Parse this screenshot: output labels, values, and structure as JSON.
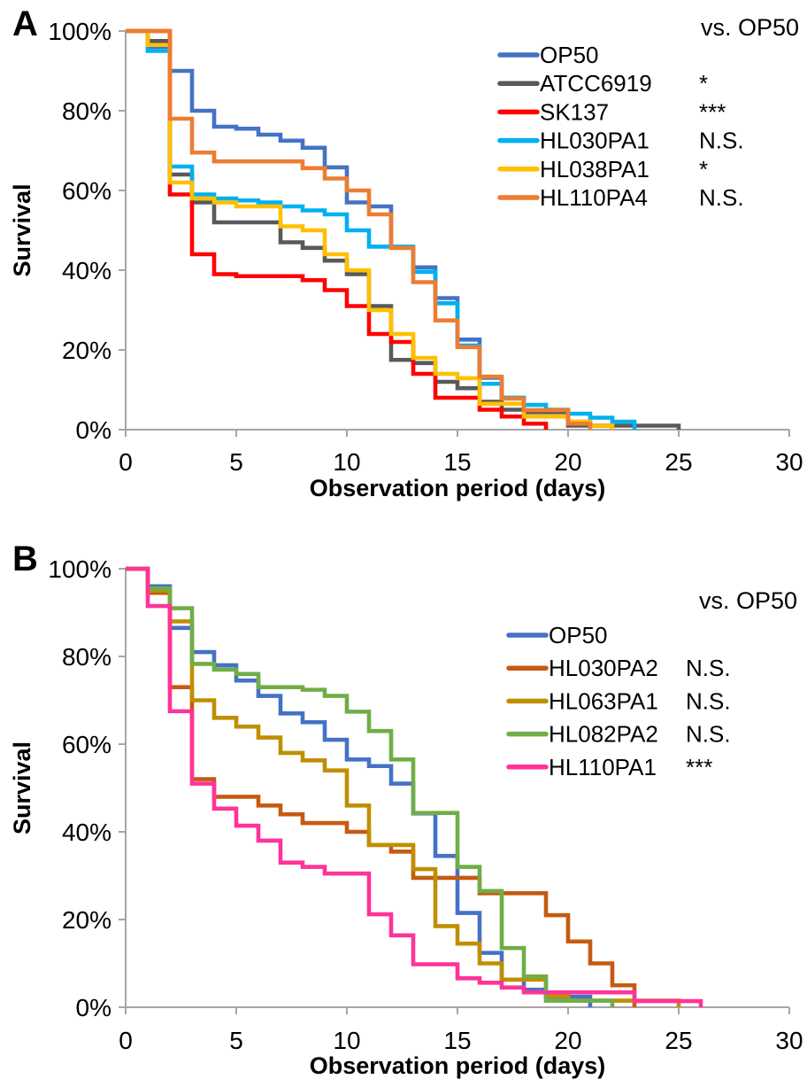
{
  "figure": {
    "background": "#ffffff",
    "axis_color": "#a6a6a6",
    "text_color": "#000000"
  },
  "chart_data": [
    {
      "type": "line",
      "subtype": "step-survival",
      "panel_label": "A",
      "title": "",
      "xlabel": "Observation period (days)",
      "ylabel": "Survival",
      "xlim": [
        0,
        30
      ],
      "ylim": [
        0,
        100
      ],
      "x_ticks": [
        0,
        5,
        10,
        15,
        20,
        25,
        30
      ],
      "y_ticks": [
        "0%",
        "20%",
        "40%",
        "60%",
        "80%",
        "100%"
      ],
      "grid": "off",
      "legend_position": "upper right",
      "legend_note": "vs. OP50",
      "series": [
        {
          "name": "OP50",
          "color": "#4472C4",
          "significance": "",
          "points": [
            [
              0,
              100
            ],
            [
              1,
              96
            ],
            [
              2,
              90
            ],
            [
              3,
              80
            ],
            [
              4,
              76
            ],
            [
              5,
              75.5
            ],
            [
              6,
              74
            ],
            [
              7,
              72.5
            ],
            [
              8,
              70.7
            ],
            [
              9,
              65.8
            ],
            [
              10,
              57
            ],
            [
              11,
              56
            ],
            [
              12,
              45.6
            ],
            [
              13,
              40.7
            ],
            [
              14,
              33
            ],
            [
              15,
              22.6
            ],
            [
              16,
              13
            ],
            [
              17,
              8
            ],
            [
              18,
              3.3
            ],
            [
              20,
              2
            ],
            [
              21,
              1
            ],
            [
              22,
              0
            ]
          ]
        },
        {
          "name": "ATCC6919",
          "color": "#595959",
          "significance": "*",
          "points": [
            [
              0,
              100
            ],
            [
              1,
              97.5
            ],
            [
              2,
              64
            ],
            [
              3,
              57
            ],
            [
              4,
              52
            ],
            [
              7,
              47
            ],
            [
              8,
              45.6
            ],
            [
              9,
              42.4
            ],
            [
              10,
              39
            ],
            [
              11,
              31
            ],
            [
              12,
              17.5
            ],
            [
              13,
              16.7
            ],
            [
              14,
              12
            ],
            [
              15,
              10.4
            ],
            [
              16,
              7
            ],
            [
              17,
              5
            ],
            [
              18,
              4.4
            ],
            [
              20,
              1
            ],
            [
              25,
              0
            ]
          ]
        },
        {
          "name": "SK137",
          "color": "#FF0000",
          "significance": "***",
          "points": [
            [
              0,
              100
            ],
            [
              2,
              59
            ],
            [
              3,
              44
            ],
            [
              4,
              39
            ],
            [
              5,
              38.5
            ],
            [
              8,
              37.5
            ],
            [
              9,
              35
            ],
            [
              10,
              31
            ],
            [
              11,
              24
            ],
            [
              12,
              22
            ],
            [
              13,
              14
            ],
            [
              14,
              8
            ],
            [
              16,
              5
            ],
            [
              17,
              3.3
            ],
            [
              18,
              1.5
            ],
            [
              19,
              0
            ]
          ]
        },
        {
          "name": "HL030PA1",
          "color": "#00B0F0",
          "significance": "N.S.",
          "points": [
            [
              0,
              100
            ],
            [
              1,
              95
            ],
            [
              2,
              66
            ],
            [
              3,
              59
            ],
            [
              4,
              58
            ],
            [
              5,
              57.5
            ],
            [
              6,
              57
            ],
            [
              7,
              56
            ],
            [
              8,
              55
            ],
            [
              9,
              54
            ],
            [
              10,
              50
            ],
            [
              11,
              45.9
            ],
            [
              13,
              39.6
            ],
            [
              14,
              31.7
            ],
            [
              15,
              21.1
            ],
            [
              16,
              11.5
            ],
            [
              17,
              8
            ],
            [
              18,
              6.2
            ],
            [
              19,
              5
            ],
            [
              20,
              4
            ],
            [
              21,
              3
            ],
            [
              22,
              2
            ],
            [
              23,
              0
            ]
          ]
        },
        {
          "name": "HL038PA1",
          "color": "#FFC000",
          "significance": "*",
          "points": [
            [
              0,
              100
            ],
            [
              1,
              96.5
            ],
            [
              2,
              62
            ],
            [
              3,
              58
            ],
            [
              4,
              57
            ],
            [
              5,
              56
            ],
            [
              7,
              51
            ],
            [
              8,
              50
            ],
            [
              9,
              44
            ],
            [
              10,
              40
            ],
            [
              11,
              30
            ],
            [
              12,
              24
            ],
            [
              13,
              18
            ],
            [
              14,
              14
            ],
            [
              15,
              12.9
            ],
            [
              16,
              6.5
            ],
            [
              18,
              3.3
            ],
            [
              20,
              2
            ],
            [
              21,
              1
            ],
            [
              22,
              0
            ]
          ]
        },
        {
          "name": "HL110PA4",
          "color": "#ED7D31",
          "significance": "N.S.",
          "points": [
            [
              0,
              100
            ],
            [
              2,
              78
            ],
            [
              3,
              69.5
            ],
            [
              4,
              67.3
            ],
            [
              8,
              65.6
            ],
            [
              9,
              63
            ],
            [
              10,
              60
            ],
            [
              11,
              54
            ],
            [
              12,
              45.6
            ],
            [
              13,
              37
            ],
            [
              14,
              27.4
            ],
            [
              15,
              20.7
            ],
            [
              16,
              13.3
            ],
            [
              17,
              7.8
            ],
            [
              18,
              4.9
            ],
            [
              20,
              1.5
            ],
            [
              21,
              0
            ]
          ]
        }
      ]
    },
    {
      "type": "line",
      "subtype": "step-survival",
      "panel_label": "B",
      "title": "",
      "xlabel": "Observation period (days)",
      "ylabel": "Survival",
      "xlim": [
        0,
        30
      ],
      "ylim": [
        0,
        100
      ],
      "x_ticks": [
        0,
        5,
        10,
        15,
        20,
        25,
        30
      ],
      "y_ticks": [
        "0%",
        "20%",
        "40%",
        "60%",
        "80%",
        "100%"
      ],
      "grid": "off",
      "legend_position": "upper right",
      "legend_note": "vs. OP50",
      "series": [
        {
          "name": "OP50",
          "color": "#4472C4",
          "significance": "",
          "points": [
            [
              0,
              100
            ],
            [
              1,
              96
            ],
            [
              2,
              86.5
            ],
            [
              3,
              81
            ],
            [
              4,
              78
            ],
            [
              5,
              74.5
            ],
            [
              6,
              71
            ],
            [
              7,
              67
            ],
            [
              8,
              65
            ],
            [
              9,
              61
            ],
            [
              10,
              56.5
            ],
            [
              11,
              55
            ],
            [
              12,
              51
            ],
            [
              13,
              44.2
            ],
            [
              14,
              34.5
            ],
            [
              15,
              21.5
            ],
            [
              16,
              12.4
            ],
            [
              17,
              6.3
            ],
            [
              18,
              4
            ],
            [
              19,
              2.4
            ],
            [
              21,
              0
            ]
          ]
        },
        {
          "name": "HL030PA2",
          "color": "#C55A11",
          "significance": "N.S.",
          "points": [
            [
              0,
              100
            ],
            [
              1,
              94.5
            ],
            [
              2,
              73
            ],
            [
              3,
              52
            ],
            [
              4,
              48
            ],
            [
              6,
              46
            ],
            [
              7,
              44
            ],
            [
              8,
              42
            ],
            [
              10,
              40
            ],
            [
              11,
              37
            ],
            [
              12,
              35.5
            ],
            [
              13,
              29.5
            ],
            [
              16,
              26
            ],
            [
              19,
              21
            ],
            [
              20,
              15
            ],
            [
              21,
              10
            ],
            [
              22,
              5
            ],
            [
              23,
              0
            ]
          ]
        },
        {
          "name": "HL063PA1",
          "color": "#BF8F00",
          "significance": "N.S.",
          "points": [
            [
              0,
              100
            ],
            [
              1,
              95
            ],
            [
              2,
              88
            ],
            [
              3,
              70
            ],
            [
              4,
              66
            ],
            [
              5,
              64
            ],
            [
              6,
              61.5
            ],
            [
              7,
              58
            ],
            [
              8,
              56.3
            ],
            [
              9,
              54
            ],
            [
              10,
              46
            ],
            [
              11,
              37
            ],
            [
              13,
              31.5
            ],
            [
              14,
              18.5
            ],
            [
              15,
              14.5
            ],
            [
              16,
              10
            ],
            [
              17,
              6.3
            ],
            [
              19,
              2.5
            ],
            [
              20,
              1.5
            ],
            [
              25,
              0
            ]
          ]
        },
        {
          "name": "HL082PA2",
          "color": "#70AD47",
          "significance": "N.S.",
          "points": [
            [
              0,
              100
            ],
            [
              1,
              95.5
            ],
            [
              2,
              91
            ],
            [
              3,
              78.3
            ],
            [
              4,
              77
            ],
            [
              5,
              76
            ],
            [
              6,
              73
            ],
            [
              8,
              72.4
            ],
            [
              9,
              71
            ],
            [
              10,
              67.4
            ],
            [
              11,
              63
            ],
            [
              12,
              56.5
            ],
            [
              13,
              44.3
            ],
            [
              15,
              32
            ],
            [
              16,
              26.5
            ],
            [
              17,
              13.5
            ],
            [
              18,
              7
            ],
            [
              19,
              1.5
            ],
            [
              22,
              0
            ]
          ]
        },
        {
          "name": "HL110PA1",
          "color": "#FF3399",
          "significance": "***",
          "points": [
            [
              0,
              100
            ],
            [
              1,
              91.5
            ],
            [
              2,
              67.5
            ],
            [
              3,
              51
            ],
            [
              4,
              45.3
            ],
            [
              5,
              41.4
            ],
            [
              6,
              38
            ],
            [
              7,
              33
            ],
            [
              8,
              32
            ],
            [
              9,
              30.5
            ],
            [
              11,
              21.2
            ],
            [
              12,
              16.4
            ],
            [
              13,
              9.8
            ],
            [
              15,
              6.6
            ],
            [
              16,
              5.6
            ],
            [
              17,
              4.5
            ],
            [
              18,
              3.4
            ],
            [
              23,
              1.4
            ],
            [
              26,
              0
            ]
          ]
        }
      ]
    }
  ]
}
